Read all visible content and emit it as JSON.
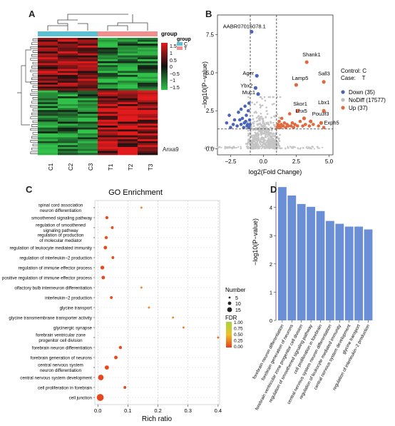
{
  "panels": {
    "A": "A",
    "B": "B",
    "C": "C",
    "D": "D"
  },
  "heatmap": {
    "columns": [
      "C1",
      "C2",
      "C3",
      "T1",
      "T2",
      "T3"
    ],
    "group_legend_title": "group",
    "group_key_title": "group",
    "groups": [
      {
        "name": "C",
        "color": "#5bc0cf"
      },
      {
        "name": "T",
        "color": "#f0908e"
      }
    ],
    "scale_ticks": [
      "1.5",
      "1",
      "0.5",
      "0",
      "−0.5",
      "−1",
      "−1.5"
    ],
    "row_label": "Anxa9"
  },
  "chart_data": [
    {
      "panel": "B",
      "type": "scatter",
      "title": "",
      "xlabel": "log2(Fold Change)",
      "ylabel": "−log10(P−value)",
      "xlim": [
        -3.5,
        5.3
      ],
      "ylim": [
        -0.4,
        8.8
      ],
      "xticks": [
        "−2.5",
        "0.0",
        "2.5",
        "5.0"
      ],
      "yticks": [
        "0.0",
        "2.5",
        "5.0",
        "7.5"
      ],
      "thresholds": {
        "fc": [
          -1,
          1
        ],
        "p": 1.3
      },
      "legend_header": [
        "Control: C",
        "Case:    T"
      ],
      "legend": [
        {
          "name": "Down (35)",
          "color": "#4a64b8"
        },
        {
          "name": "NoDiff (17577)",
          "color": "#bdbdbd"
        },
        {
          "name": "Up (37)",
          "color": "#e06a3f"
        }
      ],
      "labeled_points": [
        {
          "name": "AABR07015078.1",
          "x": -0.9,
          "y": 7.7,
          "group": "down"
        },
        {
          "name": "Ager",
          "x": -0.5,
          "y": 4.8,
          "group": "down"
        },
        {
          "name": "Ybx2",
          "x": -0.6,
          "y": 4.0,
          "group": "down"
        },
        {
          "name": "Muc1",
          "x": -0.4,
          "y": 3.6,
          "group": "down"
        },
        {
          "name": "Shank1",
          "x": 3.3,
          "y": 5.7,
          "group": "up"
        },
        {
          "name": "Sall3",
          "x": 4.6,
          "y": 4.4,
          "group": "up"
        },
        {
          "name": "Lamp5",
          "x": 2.5,
          "y": 4.2,
          "group": "up"
        },
        {
          "name": "Skor1",
          "x": 2.6,
          "y": 2.5,
          "group": "up"
        },
        {
          "name": "Lbx1",
          "x": 4.6,
          "y": 2.5,
          "group": "up"
        },
        {
          "name": "Lhx5",
          "x": 3.1,
          "y": 2.0,
          "group": "up"
        },
        {
          "name": "Pou3f3",
          "x": 3.6,
          "y": 1.8,
          "group": "up"
        },
        {
          "name": "Exph5",
          "x": 4.4,
          "y": 1.7,
          "group": "up"
        }
      ],
      "down_points": [
        [
          -2.6,
          2.2
        ],
        [
          -2.8,
          1.7
        ],
        [
          -2.5,
          1.4
        ],
        [
          -2.2,
          1.9
        ],
        [
          -2.0,
          1.5
        ],
        [
          -1.9,
          2.4
        ],
        [
          -1.7,
          1.6
        ],
        [
          -1.6,
          2.0
        ],
        [
          -1.5,
          1.4
        ],
        [
          -1.4,
          2.8
        ],
        [
          -1.35,
          1.8
        ],
        [
          -1.3,
          2.2
        ],
        [
          -1.25,
          1.5
        ],
        [
          -1.2,
          1.6
        ],
        [
          -1.15,
          2.5
        ],
        [
          -1.1,
          1.4
        ],
        [
          -1.05,
          1.9
        ],
        [
          -1.02,
          1.6
        ],
        [
          -1.7,
          2.6
        ],
        [
          -2.3,
          1.6
        ],
        [
          -1.8,
          1.9
        ],
        [
          -1.45,
          1.7
        ],
        [
          -1.1,
          3.0
        ]
      ],
      "up_points": [
        [
          1.05,
          1.4
        ],
        [
          1.1,
          1.6
        ],
        [
          1.15,
          1.5
        ],
        [
          1.2,
          1.8
        ],
        [
          1.3,
          1.4
        ],
        [
          1.35,
          1.6
        ],
        [
          1.4,
          2.0
        ],
        [
          1.5,
          1.5
        ],
        [
          1.6,
          1.7
        ],
        [
          1.7,
          1.4
        ],
        [
          1.8,
          1.6
        ],
        [
          1.9,
          1.5
        ],
        [
          2.0,
          2.3
        ],
        [
          2.1,
          1.5
        ],
        [
          2.2,
          1.7
        ],
        [
          2.3,
          1.4
        ],
        [
          2.4,
          1.6
        ],
        [
          2.6,
          1.5
        ],
        [
          2.8,
          1.8
        ],
        [
          3.0,
          1.5
        ],
        [
          3.2,
          1.6
        ],
        [
          3.5,
          1.5
        ],
        [
          3.8,
          1.6
        ],
        [
          4.2,
          1.5
        ],
        [
          4.6,
          1.4
        ]
      ]
    },
    {
      "panel": "C",
      "type": "scatter",
      "title": "GO Enrichment",
      "xlabel": "Rich ratio",
      "ylabel": "",
      "xlim": [
        -0.01,
        0.405
      ],
      "xticks": [
        "0.0",
        "0.1",
        "0.2",
        "0.3",
        "0.4"
      ],
      "size_legend_title": "Number",
      "size_legend": [
        "5",
        "10",
        "15"
      ],
      "color_legend_title": "FDR",
      "color_legend": [
        "1.00",
        "0.75",
        "0.50",
        "0.25",
        "0.00"
      ],
      "terms": [
        {
          "label": [
            "spinal cord association",
            "neuron differentiation"
          ],
          "x": 0.145,
          "n": 2,
          "fdr": 0.3
        },
        {
          "label": [
            "smoothened signaling pathway"
          ],
          "x": 0.03,
          "n": 5,
          "fdr": 0.05
        },
        {
          "label": [
            "regulation of smoothened",
            "signaling pathway"
          ],
          "x": 0.048,
          "n": 4,
          "fdr": 0.05
        },
        {
          "label": [
            "regulation of production",
            "of molecular mediator"
          ],
          "x": 0.028,
          "n": 5,
          "fdr": 0.05
        },
        {
          "label": [
            "regulation of leukocyte mediated immunity"
          ],
          "x": 0.025,
          "n": 6,
          "fdr": 0.04
        },
        {
          "label": [
            "regulation of interleukin−2 production"
          ],
          "x": 0.05,
          "n": 4,
          "fdr": 0.05
        },
        {
          "label": [
            "regulation of immune effector process"
          ],
          "x": 0.015,
          "n": 7,
          "fdr": 0.03
        },
        {
          "label": [
            "positive regulation of immune effector process"
          ],
          "x": 0.018,
          "n": 6,
          "fdr": 0.03
        },
        {
          "label": [
            "olfactory bulb interneuron differentiation"
          ],
          "x": 0.145,
          "n": 2,
          "fdr": 0.3
        },
        {
          "label": [
            "interleukin−2 production"
          ],
          "x": 0.045,
          "n": 4,
          "fdr": 0.05
        },
        {
          "label": [
            "glycine transport"
          ],
          "x": 0.17,
          "n": 2,
          "fdr": 0.3
        },
        {
          "label": [
            "glycine transmembrane transporter activity"
          ],
          "x": 0.25,
          "n": 2,
          "fdr": 0.3
        },
        {
          "label": [
            "glycinergic synapse"
          ],
          "x": 0.285,
          "n": 2,
          "fdr": 0.25
        },
        {
          "label": [
            "forebrain ventricular zone",
            "progenitor cell division"
          ],
          "x": 0.4,
          "n": 2,
          "fdr": 0.2
        },
        {
          "label": [
            "forebrain neuron differentiation"
          ],
          "x": 0.075,
          "n": 5,
          "fdr": 0.03
        },
        {
          "label": [
            "forebrain generation of neurons"
          ],
          "x": 0.06,
          "n": 6,
          "fdr": 0.03
        },
        {
          "label": [
            "central nervous system",
            "neuron differentiation"
          ],
          "x": 0.03,
          "n": 8,
          "fdr": 0.03
        },
        {
          "label": [
            "central nervous system development"
          ],
          "x": 0.01,
          "n": 12,
          "fdr": 0.02
        },
        {
          "label": [
            "cell proliferation in forebrain"
          ],
          "x": 0.09,
          "n": 4,
          "fdr": 0.03
        },
        {
          "label": [
            "cell junction"
          ],
          "x": 0.008,
          "n": 16,
          "fdr": 0.02
        }
      ]
    },
    {
      "panel": "D",
      "type": "bar",
      "title": "",
      "xlabel": "",
      "ylabel": "−log10(P−value)",
      "ylim": [
        0,
        4.9
      ],
      "yticks": [
        "0",
        "1",
        "2",
        "3",
        "4"
      ],
      "bar_color": "#6b8fd6",
      "categories": [
        "forebrain neuron differentiation",
        "forebrain generation of neurons",
        "forebrain ventricular zone progenitor cell division",
        "regulation of smoothened signaling pathway",
        "cell proliferation in forebrain",
        "central nervous system neuron differentiation",
        "regulation of leukocyte mediated immunity",
        "central nervous system development",
        "glycine transport",
        "regulation of interleukin−2 production"
      ],
      "values": [
        4.72,
        4.42,
        4.12,
        4.02,
        3.87,
        3.52,
        3.42,
        3.32,
        3.32,
        3.22
      ]
    }
  ]
}
